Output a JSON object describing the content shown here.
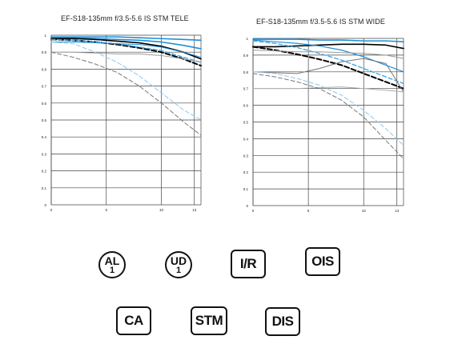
{
  "chart_data": [
    {
      "type": "line",
      "title": "EF-S18-135mm f/3.5-5.6 IS STM    TELE",
      "xlim": [
        0,
        13.6
      ],
      "ylim": [
        0,
        1
      ],
      "x_ticks": [
        0,
        5,
        10,
        13
      ],
      "x_tick_labels": [
        "0",
        "5",
        "10",
        "13"
      ],
      "y_ticks": [
        0,
        0.1,
        0.2,
        0.3,
        0.4,
        0.5,
        0.6,
        0.7,
        0.8,
        0.9,
        1
      ],
      "y_tick_labels": [
        "0",
        "0.1",
        "0.2",
        "0.3",
        "0.4",
        "0.5",
        "0.6",
        "0.7",
        "0.8",
        "0.9",
        "1"
      ],
      "grid": true,
      "series": [
        {
          "color": "#1f8fd8",
          "dash": "solid",
          "width": 1.6,
          "x": [
            0,
            2,
            4,
            6,
            8,
            10,
            12,
            13.6
          ],
          "y": [
            0.99,
            0.99,
            0.99,
            0.99,
            0.985,
            0.98,
            0.975,
            0.97
          ]
        },
        {
          "color": "#1f8fd8",
          "dash": "solid",
          "width": 1.6,
          "x": [
            0,
            2,
            4,
            6,
            8,
            10,
            12,
            13.6
          ],
          "y": [
            0.985,
            0.985,
            0.98,
            0.975,
            0.97,
            0.96,
            0.94,
            0.92
          ]
        },
        {
          "color": "#000000",
          "dash": "solid",
          "width": 1.6,
          "x": [
            0,
            2,
            4,
            6,
            8,
            10,
            12,
            13.6
          ],
          "y": [
            0.98,
            0.98,
            0.975,
            0.965,
            0.955,
            0.935,
            0.9,
            0.86
          ]
        },
        {
          "color": "#000000",
          "dash": "dash",
          "width": 2.0,
          "x": [
            0,
            2,
            4,
            6,
            8,
            10,
            12,
            13.6
          ],
          "y": [
            0.975,
            0.97,
            0.96,
            0.945,
            0.925,
            0.9,
            0.86,
            0.82
          ]
        },
        {
          "color": "#4aa8e8",
          "dash": "dash",
          "width": 1.4,
          "x": [
            0,
            2,
            4,
            6,
            8,
            10,
            12,
            13.6
          ],
          "y": [
            0.975,
            0.97,
            0.96,
            0.95,
            0.93,
            0.91,
            0.87,
            0.84
          ]
        },
        {
          "color": "#1f8fd8",
          "dash": "solid",
          "width": 1.0,
          "x": [
            0,
            2,
            4,
            6,
            8,
            10,
            12,
            13.6
          ],
          "y": [
            0.96,
            0.96,
            0.955,
            0.95,
            0.945,
            0.93,
            0.9,
            0.87
          ]
        },
        {
          "color": "#999999",
          "dash": "solid",
          "width": 1.0,
          "x": [
            0,
            2,
            4,
            6,
            8,
            10,
            12,
            13.6
          ],
          "y": [
            0.9,
            0.9,
            0.895,
            0.89,
            0.89,
            0.88,
            0.86,
            0.84
          ]
        },
        {
          "color": "#8fc6ee",
          "dash": "dash",
          "width": 1.0,
          "x": [
            0,
            2,
            4,
            6,
            8,
            10,
            12,
            13.6
          ],
          "y": [
            0.96,
            0.95,
            0.9,
            0.84,
            0.76,
            0.66,
            0.56,
            0.5
          ]
        },
        {
          "color": "#777777",
          "dash": "dash",
          "width": 1.0,
          "x": [
            0,
            2,
            4,
            6,
            8,
            10,
            12,
            13.6
          ],
          "y": [
            0.9,
            0.87,
            0.83,
            0.78,
            0.7,
            0.6,
            0.49,
            0.41
          ]
        }
      ]
    },
    {
      "type": "line",
      "title": "EF-S18-135mm f/3.5-5.6 IS STM  WIDE",
      "xlim": [
        0,
        13.6
      ],
      "ylim": [
        0,
        1
      ],
      "x_ticks": [
        0,
        5,
        10,
        13
      ],
      "x_tick_labels": [
        "0",
        "5",
        "10",
        "13"
      ],
      "y_ticks": [
        0,
        0.1,
        0.2,
        0.3,
        0.4,
        0.5,
        0.6,
        0.7,
        0.8,
        0.9,
        1
      ],
      "y_tick_labels": [
        "0",
        "0.1",
        "0.2",
        "0.3",
        "0.4",
        "0.5",
        "0.6",
        "0.7",
        "0.8",
        "0.9",
        "1"
      ],
      "grid": true,
      "series": [
        {
          "color": "#1f8fd8",
          "dash": "solid",
          "width": 1.6,
          "x": [
            0,
            2,
            4,
            6,
            8,
            10,
            12,
            13.6
          ],
          "y": [
            0.995,
            0.995,
            0.995,
            0.99,
            0.99,
            0.985,
            0.985,
            0.98
          ]
        },
        {
          "color": "#000000",
          "dash": "solid",
          "width": 1.6,
          "x": [
            0,
            2,
            4,
            6,
            8,
            10,
            12,
            13.6
          ],
          "y": [
            0.95,
            0.95,
            0.955,
            0.96,
            0.965,
            0.965,
            0.96,
            0.94
          ]
        },
        {
          "color": "#1f8fd8",
          "dash": "solid",
          "width": 1.2,
          "x": [
            0,
            2,
            4,
            6,
            8,
            10,
            12,
            13.6
          ],
          "y": [
            0.99,
            0.98,
            0.97,
            0.955,
            0.93,
            0.89,
            0.84,
            0.8
          ]
        },
        {
          "color": "#4aa8e8",
          "dash": "dash",
          "width": 1.4,
          "x": [
            0,
            2,
            4,
            6,
            8,
            10,
            12,
            13.6
          ],
          "y": [
            0.985,
            0.97,
            0.945,
            0.91,
            0.87,
            0.82,
            0.77,
            0.73
          ]
        },
        {
          "color": "#000000",
          "dash": "dash",
          "width": 2.0,
          "x": [
            0,
            2,
            4,
            6,
            8,
            10,
            12,
            13.6
          ],
          "y": [
            0.95,
            0.93,
            0.905,
            0.875,
            0.84,
            0.79,
            0.74,
            0.7
          ]
        },
        {
          "color": "#999999",
          "dash": "solid",
          "width": 1.0,
          "x": [
            0,
            2,
            4,
            6,
            8,
            10,
            12,
            13.6
          ],
          "y": [
            0.93,
            0.925,
            0.92,
            0.92,
            0.915,
            0.91,
            0.9,
            0.88
          ]
        },
        {
          "color": "#777777",
          "dash": "solid",
          "width": 1.0,
          "x": [
            0,
            2,
            4,
            6,
            8,
            10,
            12,
            13.6
          ],
          "y": [
            0.8,
            0.795,
            0.79,
            0.82,
            0.86,
            0.88,
            0.85,
            0.68
          ]
        },
        {
          "color": "#aaaaaa",
          "dash": "solid",
          "width": 1.0,
          "x": [
            0,
            2,
            4,
            6,
            8,
            10,
            12,
            13.6
          ],
          "y": [
            0.7,
            0.7,
            0.7,
            0.705,
            0.71,
            0.7,
            0.69,
            0.68
          ]
        },
        {
          "color": "#8fc6ee",
          "dash": "dash",
          "width": 1.0,
          "x": [
            0,
            2,
            4,
            6,
            8,
            10,
            12,
            13.6
          ],
          "y": [
            0.8,
            0.79,
            0.76,
            0.72,
            0.66,
            0.57,
            0.46,
            0.36
          ]
        },
        {
          "color": "#777777",
          "dash": "dash",
          "width": 1.0,
          "x": [
            0,
            2,
            4,
            6,
            8,
            10,
            12,
            13.6
          ],
          "y": [
            0.79,
            0.77,
            0.74,
            0.7,
            0.63,
            0.53,
            0.39,
            0.28
          ]
        }
      ]
    }
  ],
  "features": {
    "row1": [
      {
        "name": "al1-icon",
        "main": "AL",
        "sub": "1",
        "shape": "circle"
      },
      {
        "name": "ud1-icon",
        "main": "UD",
        "sub": "1",
        "shape": "circle"
      },
      {
        "name": "ir-icon",
        "main": "I/R",
        "sub": "",
        "shape": "rounded"
      },
      {
        "name": "ois-icon",
        "main": "OIS",
        "sub": "",
        "shape": "rounded"
      }
    ],
    "row2": [
      {
        "name": "ca-icon",
        "main": "CA",
        "sub": "",
        "shape": "rounded"
      },
      {
        "name": "stm-icon",
        "main": "STM",
        "sub": "",
        "shape": "rounded"
      },
      {
        "name": "dis-icon",
        "main": "DIS",
        "sub": "",
        "shape": "rounded"
      }
    ]
  }
}
